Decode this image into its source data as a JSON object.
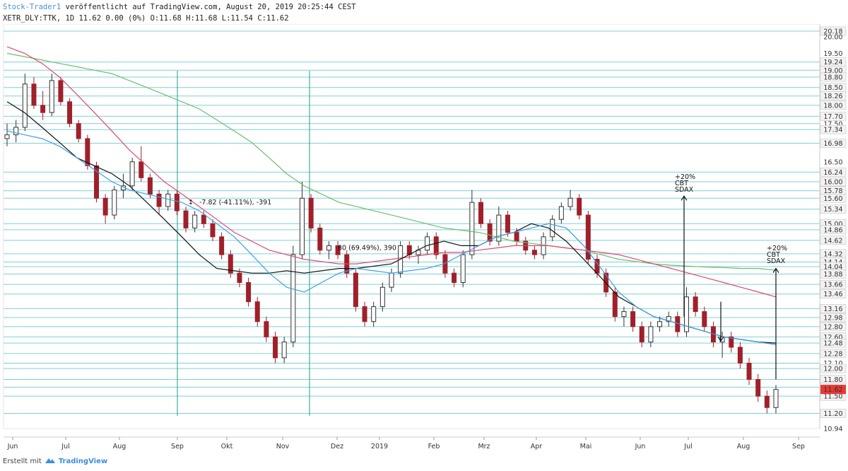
{
  "header": {
    "author": "Stock-Trader1",
    "published": "veröffentlicht auf TradingView.com, August 20, 2019 20:25:44 CEST",
    "ticker_line": "XETR_DLY:TTK, 1D 11.62 0.00 (0%) O:11.68 H:11.68 L:11.54 C:11.62"
  },
  "footer": {
    "created_with": "Erstellt mit",
    "brand": "TradingView"
  },
  "colors": {
    "up": "#333333",
    "down": "#a0202a",
    "sma_fast": "#3aa0e8",
    "sma_mid": "#111111",
    "sma_slow": "#e04870",
    "sma_long": "#6cbf6c",
    "hline": "#7fd0d8",
    "vline": "#1b9e8a",
    "last_price": "#e53935",
    "boxed_level": "#f3f3f3"
  },
  "chart_data": {
    "type": "candlestick",
    "symbol": "XETR_DLY:TTK",
    "interval": "1D",
    "ylim": [
      10.94,
      20.4
    ],
    "y_scale": "log",
    "x_months": [
      "Jun",
      "Jul",
      "Aug",
      "Sep",
      "Okt",
      "Nov",
      "Dez",
      "2019",
      "Feb",
      "Mrz",
      "Apr",
      "Mai",
      "Jun",
      "Jul",
      "Aug",
      "Sep"
    ],
    "y_ticks": [
      "20.18",
      "20.00",
      "19.50",
      "19.24",
      "19.00",
      "18.80",
      "18.50",
      "18.26",
      "18.00",
      "17.70",
      "17.50",
      "17.34",
      "16.98",
      "16.50",
      "16.24",
      "16.00",
      "15.78",
      "15.60",
      "15.34",
      "15.00",
      "14.86",
      "14.62",
      "14.32",
      "14.14",
      "14.04",
      "13.88",
      "13.66",
      "13.46",
      "13.16",
      "12.98",
      "12.80",
      "12.60",
      "12.48",
      "12.28",
      "12.10",
      "12.00",
      "11.80",
      "11.66",
      "11.50",
      "11.20",
      "10.94"
    ],
    "boxed_levels": [
      "20.18",
      "19.24",
      "19.00",
      "18.80",
      "18.50",
      "18.26",
      "18.00",
      "17.70",
      "17.34",
      "16.98",
      "16.24",
      "16.00",
      "15.78",
      "15.60",
      "15.34",
      "15.00",
      "14.86",
      "14.62",
      "14.32",
      "14.14",
      "14.04",
      "13.88",
      "13.66",
      "13.46",
      "13.16",
      "12.98",
      "12.80",
      "12.60",
      "12.48",
      "12.28",
      "12.00",
      "11.80",
      "11.66",
      "11.50",
      "11.20"
    ],
    "horizontal_levels": [
      20.18,
      19.24,
      19.0,
      18.8,
      18.5,
      18.26,
      18.0,
      17.7,
      17.5,
      17.34,
      16.98,
      16.24,
      16.0,
      15.78,
      15.6,
      15.34,
      15.0,
      14.86,
      14.62,
      14.32,
      14.14,
      14.04,
      13.88,
      13.66,
      13.46,
      13.16,
      12.98,
      12.8,
      12.6,
      12.48,
      12.28,
      12.1,
      12.0,
      11.8,
      11.66,
      11.5,
      11.2
    ],
    "last_price": "11.62",
    "candles": [
      [
        17.1,
        17.5,
        16.9,
        17.2
      ],
      [
        17.2,
        17.6,
        17.0,
        17.4
      ],
      [
        17.4,
        18.9,
        17.3,
        18.6
      ],
      [
        18.6,
        18.8,
        17.9,
        18.0
      ],
      [
        18.0,
        18.4,
        17.6,
        17.8
      ],
      [
        17.8,
        18.9,
        17.7,
        18.7
      ],
      [
        18.7,
        18.8,
        18.0,
        18.1
      ],
      [
        18.1,
        18.2,
        17.4,
        17.5
      ],
      [
        17.5,
        17.6,
        17.0,
        17.1
      ],
      [
        17.1,
        17.2,
        16.3,
        16.4
      ],
      [
        16.4,
        16.5,
        15.5,
        15.6
      ],
      [
        15.6,
        15.7,
        15.0,
        15.2
      ],
      [
        15.2,
        15.9,
        15.1,
        15.8
      ],
      [
        15.8,
        16.2,
        15.6,
        15.9
      ],
      [
        15.9,
        16.6,
        15.8,
        16.5
      ],
      [
        16.5,
        16.9,
        16.0,
        16.1
      ],
      [
        16.1,
        16.2,
        15.6,
        15.7
      ],
      [
        15.7,
        15.8,
        15.2,
        15.4
      ],
      [
        15.4,
        15.8,
        15.3,
        15.7
      ],
      [
        15.7,
        15.8,
        15.2,
        15.3
      ],
      [
        15.3,
        15.4,
        14.8,
        14.9
      ],
      [
        14.9,
        15.3,
        14.8,
        15.2
      ],
      [
        15.2,
        15.3,
        14.9,
        15.0
      ],
      [
        15.0,
        15.1,
        14.6,
        14.7
      ],
      [
        14.7,
        14.8,
        14.2,
        14.3
      ],
      [
        14.3,
        14.4,
        13.8,
        13.9
      ],
      [
        13.9,
        14.0,
        13.6,
        13.7
      ],
      [
        13.7,
        13.8,
        13.2,
        13.3
      ],
      [
        13.3,
        13.4,
        12.8,
        12.9
      ],
      [
        12.9,
        13.0,
        12.5,
        12.6
      ],
      [
        12.6,
        12.7,
        12.1,
        12.2
      ],
      [
        12.2,
        12.6,
        12.1,
        12.5
      ],
      [
        12.5,
        14.5,
        12.4,
        14.3
      ],
      [
        14.3,
        16.0,
        14.2,
        15.6
      ],
      [
        15.6,
        15.7,
        14.8,
        14.9
      ],
      [
        14.9,
        15.0,
        14.3,
        14.4
      ],
      [
        14.4,
        14.6,
        14.2,
        14.5
      ],
      [
        14.5,
        14.6,
        14.2,
        14.3
      ],
      [
        14.3,
        14.4,
        13.8,
        13.9
      ],
      [
        13.9,
        14.0,
        13.1,
        13.2
      ],
      [
        13.2,
        13.3,
        12.8,
        12.9
      ],
      [
        12.9,
        13.3,
        12.8,
        13.2
      ],
      [
        13.2,
        13.7,
        13.1,
        13.6
      ],
      [
        13.6,
        14.0,
        13.5,
        13.9
      ],
      [
        13.9,
        14.6,
        13.8,
        14.5
      ],
      [
        14.5,
        14.6,
        14.2,
        14.3
      ],
      [
        14.3,
        14.5,
        14.1,
        14.4
      ],
      [
        14.4,
        14.8,
        14.3,
        14.7
      ],
      [
        14.7,
        14.8,
        14.2,
        14.3
      ],
      [
        14.3,
        14.4,
        13.8,
        13.9
      ],
      [
        13.9,
        14.0,
        13.6,
        13.7
      ],
      [
        13.7,
        14.4,
        13.6,
        14.3
      ],
      [
        14.3,
        15.8,
        14.2,
        15.5
      ],
      [
        15.5,
        15.6,
        14.9,
        15.0
      ],
      [
        15.0,
        15.1,
        14.5,
        14.6
      ],
      [
        14.6,
        15.4,
        14.5,
        15.2
      ],
      [
        15.2,
        15.3,
        14.7,
        14.8
      ],
      [
        14.8,
        14.9,
        14.5,
        14.6
      ],
      [
        14.6,
        14.7,
        14.3,
        14.4
      ],
      [
        14.4,
        14.5,
        14.2,
        14.3
      ],
      [
        14.3,
        14.8,
        14.2,
        14.7
      ],
      [
        14.7,
        15.2,
        14.6,
        15.1
      ],
      [
        15.1,
        15.5,
        15.0,
        15.4
      ],
      [
        15.4,
        15.8,
        15.3,
        15.6
      ],
      [
        15.6,
        15.7,
        15.1,
        15.2
      ],
      [
        15.2,
        15.3,
        14.1,
        14.2
      ],
      [
        14.2,
        14.3,
        13.8,
        13.9
      ],
      [
        13.9,
        14.0,
        13.4,
        13.5
      ],
      [
        13.5,
        13.6,
        12.9,
        13.0
      ],
      [
        13.0,
        13.2,
        12.8,
        13.1
      ],
      [
        13.1,
        13.2,
        12.7,
        12.8
      ],
      [
        12.8,
        12.9,
        12.4,
        12.5
      ],
      [
        12.5,
        12.9,
        12.4,
        12.8
      ],
      [
        12.8,
        13.0,
        12.7,
        12.9
      ],
      [
        12.9,
        13.1,
        12.8,
        13.0
      ],
      [
        13.0,
        13.1,
        12.6,
        12.7
      ],
      [
        12.7,
        13.6,
        12.6,
        13.4
      ],
      [
        13.4,
        13.5,
        13.0,
        13.1
      ],
      [
        13.1,
        13.2,
        12.7,
        12.8
      ],
      [
        12.8,
        12.9,
        12.4,
        12.5
      ],
      [
        12.5,
        12.7,
        12.2,
        12.6
      ],
      [
        12.6,
        12.7,
        12.3,
        12.4
      ],
      [
        12.4,
        12.5,
        12.0,
        12.1
      ],
      [
        12.1,
        12.2,
        11.7,
        11.8
      ],
      [
        11.8,
        11.9,
        11.4,
        11.5
      ],
      [
        11.5,
        11.6,
        11.2,
        11.3
      ],
      [
        11.3,
        11.7,
        11.2,
        11.62
      ]
    ],
    "sma_fast_y": [
      17.3,
      17.2,
      17.1,
      16.9,
      16.6,
      16.3,
      16.0,
      15.8,
      15.7,
      15.6,
      15.5,
      15.3,
      15.0,
      14.7,
      14.3,
      13.9,
      13.6,
      13.5,
      13.7,
      13.9,
      14.0,
      13.95,
      13.9,
      13.95,
      14.0,
      14.1,
      14.3,
      14.5,
      14.7,
      14.8,
      14.9,
      15.0,
      14.9,
      14.5,
      14.0,
      13.5,
      13.2,
      13.0,
      12.9,
      12.8,
      12.7,
      12.6,
      12.55,
      12.5,
      12.45
    ],
    "sma_mid_y": [
      18.1,
      17.8,
      17.4,
      17.0,
      16.6,
      16.4,
      16.2,
      15.9,
      15.5,
      15.1,
      14.7,
      14.3,
      14.0,
      13.95,
      13.9,
      13.9,
      13.95,
      13.9,
      13.95,
      14.0,
      14.0,
      14.05,
      14.1,
      14.3,
      14.5,
      14.6,
      14.5,
      14.5,
      14.7,
      14.8,
      15.0,
      14.9,
      14.6,
      14.2,
      13.8,
      13.4,
      13.2,
      13.0,
      12.9,
      12.8,
      12.7,
      12.6,
      12.55,
      12.5,
      12.48
    ],
    "sma_slow_y": [
      19.7,
      19.5,
      19.2,
      18.8,
      18.3,
      17.8,
      17.3,
      16.8,
      16.4,
      16.0,
      15.7,
      15.4,
      15.1,
      14.8,
      14.6,
      14.4,
      14.3,
      14.2,
      14.15,
      14.1,
      14.1,
      14.15,
      14.2,
      14.25,
      14.3,
      14.35,
      14.35,
      14.4,
      14.45,
      14.5,
      14.5,
      14.5,
      14.45,
      14.4,
      14.35,
      14.3,
      14.2,
      14.1,
      14.0,
      13.9,
      13.8,
      13.7,
      13.6,
      13.5,
      13.4
    ],
    "sma_long_y": [
      19.5,
      19.4,
      19.3,
      19.2,
      19.1,
      19.0,
      18.9,
      18.7,
      18.5,
      18.3,
      18.1,
      17.9,
      17.6,
      17.3,
      17.0,
      16.6,
      16.2,
      15.9,
      15.7,
      15.5,
      15.4,
      15.3,
      15.2,
      15.1,
      15.0,
      14.9,
      14.85,
      14.8,
      14.7,
      14.6,
      14.55,
      14.5,
      14.45,
      14.4,
      14.3,
      14.2,
      14.15,
      14.1,
      14.07,
      14.05,
      14.03,
      14.02,
      14.0,
      14.0,
      13.96
    ],
    "annotations": [
      {
        "text": "-7.82 (-41.11%), -391"
      },
      {
        "text": "80 (69.49%), 390"
      },
      {
        "text": "+20%",
        "line2": "CBT",
        "line3": "SDAX"
      },
      {
        "text": "+20%",
        "line2": "CBT",
        "line3": "SDAX"
      }
    ]
  }
}
